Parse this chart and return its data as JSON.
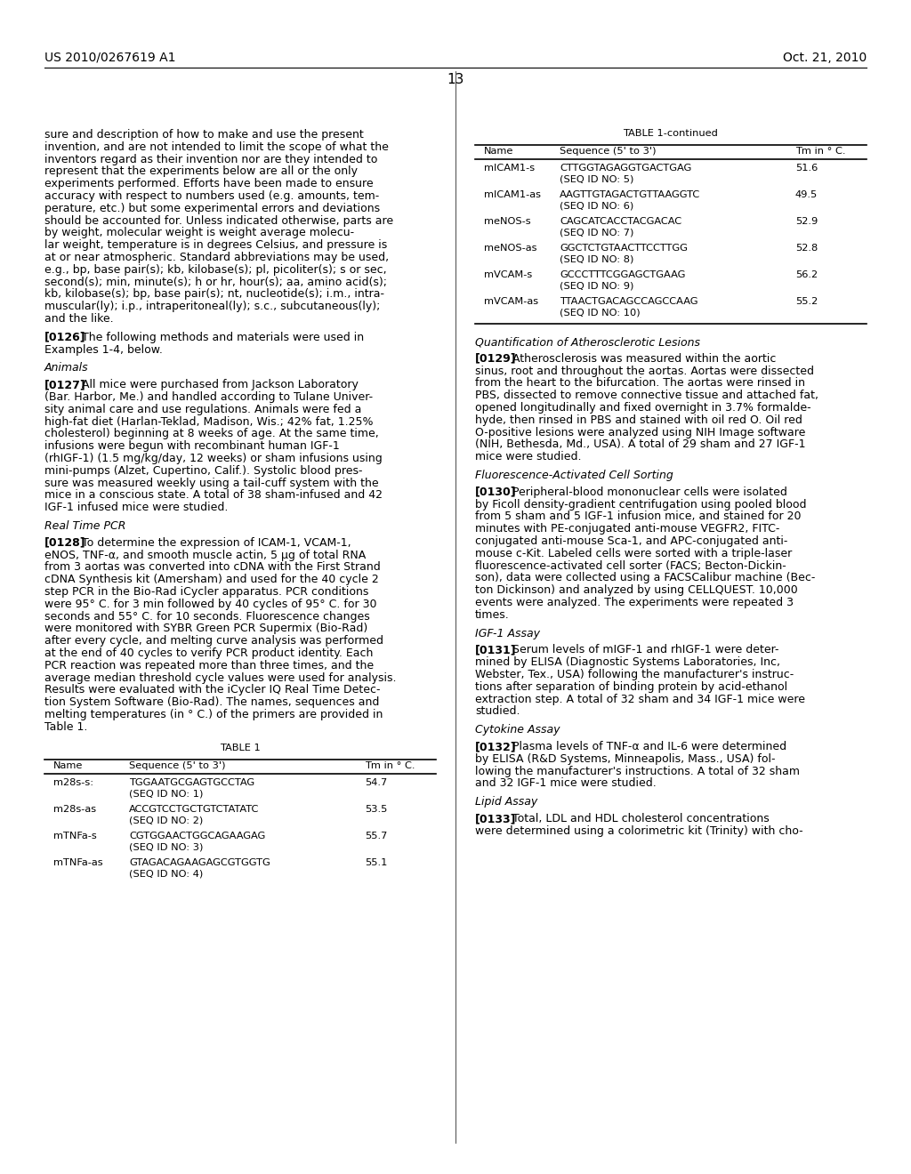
{
  "bg_color": "#ffffff",
  "header_left": "US 2010/0267619 A1",
  "header_right": "Oct. 21, 2010",
  "page_number": "13",
  "table1_title": "TABLE 1",
  "table1_cont_title": "TABLE 1-continued",
  "table1_headers": [
    "Name",
    "Sequence (5' to 3')",
    "Tm in ° C."
  ],
  "table1_rows": [
    [
      "m28s-s:",
      "TGGAATGCGAGTGCCTAG",
      "(SEQ ID NO: 1)",
      "54.7"
    ],
    [
      "m28s-as",
      "ACCGTCCTGCTGTCTATATC",
      "(SEQ ID NO: 2)",
      "53.5"
    ],
    [
      "mTNFa-s",
      "CGTGGAACTGGCAGAAGAG",
      "(SEQ ID NO: 3)",
      "55.7"
    ],
    [
      "mTNFa-as",
      "GTAGACAGAAGAGCGTGGTG",
      "(SEQ ID NO: 4)",
      "55.1"
    ]
  ],
  "table1_cont_rows": [
    [
      "mICAM1-s",
      "CTTGGTAGAGGTGACTGAG",
      "(SEQ ID NO: 5)",
      "51.6"
    ],
    [
      "mICAM1-as",
      "AAGTTGTAGACTGTTAAGGTC",
      "(SEQ ID NO: 6)",
      "49.5"
    ],
    [
      "meNOS-s",
      "CAGCATCACCTACGACAC",
      "(SEQ ID NO: 7)",
      "52.9"
    ],
    [
      "meNOS-as",
      "GGCTCTGTAACTTCCTTGG",
      "(SEQ ID NO: 8)",
      "52.8"
    ],
    [
      "mVCAM-s",
      "GCCCTTTCGGAGCTGAAG",
      "(SEQ ID NO: 9)",
      "56.2"
    ],
    [
      "mVCAM-as",
      "TTAACTGACAGCCAGCCAAG",
      "(SEQ ID NO: 10)",
      "55.2"
    ]
  ],
  "left_col": [
    {
      "type": "body",
      "lines": [
        "sure and description of how to make and use the present",
        "invention, and are not intended to limit the scope of what the",
        "inventors regard as their invention nor are they intended to",
        "represent that the experiments below are all or the only",
        "experiments performed. Efforts have been made to ensure",
        "accuracy with respect to numbers used (e.g. amounts, tem-",
        "perature, etc.) but some experimental errors and deviations",
        "should be accounted for. Unless indicated otherwise, parts are",
        "by weight, molecular weight is weight average molecu-",
        "lar weight, temperature is in degrees Celsius, and pressure is",
        "at or near atmospheric. Standard abbreviations may be used,",
        "e.g., bp, base pair(s); kb, kilobase(s); pl, picoliter(s); s or sec,",
        "second(s); min, minute(s); h or hr, hour(s); aa, amino acid(s);",
        "kb, kilobase(s); bp, base pair(s); nt, nucleotide(s); i.m., intra-",
        "muscular(ly); i.p., intraperitoneal(ly); s.c., subcutaneous(ly);",
        "and the like."
      ]
    },
    {
      "type": "tagged",
      "tag": "[0126]",
      "lines": [
        "The following methods and materials were used in",
        "Examples 1-4, below."
      ]
    },
    {
      "type": "section",
      "text": "Animals"
    },
    {
      "type": "tagged",
      "tag": "[0127]",
      "lines": [
        "All mice were purchased from Jackson Laboratory",
        "(Bar. Harbor, Me.) and handled according to Tulane Univer-",
        "sity animal care and use regulations. Animals were fed a",
        "high-fat diet (Harlan-Teklad, Madison, Wis.; 42% fat, 1.25%",
        "cholesterol) beginning at 8 weeks of age. At the same time,",
        "infusions were begun with recombinant human IGF-1",
        "(rhIGF-1) (1.5 mg/kg/day, 12 weeks) or sham infusions using",
        "mini-pumps (Alzet, Cupertino, Calif.). Systolic blood pres-",
        "sure was measured weekly using a tail-cuff system with the",
        "mice in a conscious state. A total of 38 sham-infused and 42",
        "IGF-1 infused mice were studied."
      ]
    },
    {
      "type": "section",
      "text": "Real Time PCR"
    },
    {
      "type": "tagged",
      "tag": "[0128]",
      "lines": [
        "To determine the expression of ICAM-1, VCAM-1,",
        "eNOS, TNF-α, and smooth muscle actin, 5 μg of total RNA",
        "from 3 aortas was converted into cDNA with the First Strand",
        "cDNA Synthesis kit (Amersham) and used for the 40 cycle 2",
        "step PCR in the Bio-Rad iCycler apparatus. PCR conditions",
        "were 95° C. for 3 min followed by 40 cycles of 95° C. for 30",
        "seconds and 55° C. for 10 seconds. Fluorescence changes",
        "were monitored with SYBR Green PCR Supermix (Bio-Rad)",
        "after every cycle, and melting curve analysis was performed",
        "at the end of 40 cycles to verify PCR product identity. Each",
        "PCR reaction was repeated more than three times, and the",
        "average median threshold cycle values were used for analysis.",
        "Results were evaluated with the iCycler IQ Real Time Detec-",
        "tion System Software (Bio-Rad). The names, sequences and",
        "melting temperatures (in ° C.) of the primers are provided in",
        "Table 1."
      ]
    }
  ],
  "right_col": [
    {
      "type": "section",
      "text": "Quantification of Atherosclerotic Lesions"
    },
    {
      "type": "tagged",
      "tag": "[0129]",
      "lines": [
        "Atherosclerosis was measured within the aortic",
        "sinus, root and throughout the aortas. Aortas were dissected",
        "from the heart to the bifurcation. The aortas were rinsed in",
        "PBS, dissected to remove connective tissue and attached fat,",
        "opened longitudinally and fixed overnight in 3.7% formalde-",
        "hyde, then rinsed in PBS and stained with oil red O. Oil red",
        "O-positive lesions were analyzed using NIH Image software",
        "(NIH, Bethesda, Md., USA). A total of 29 sham and 27 IGF-1",
        "mice were studied."
      ]
    },
    {
      "type": "section",
      "text": "Fluorescence-Activated Cell Sorting"
    },
    {
      "type": "tagged",
      "tag": "[0130]",
      "lines": [
        "Peripheral-blood mononuclear cells were isolated",
        "by Ficoll density-gradient centrifugation using pooled blood",
        "from 5 sham and 5 IGF-1 infusion mice, and stained for 20",
        "minutes with PE-conjugated anti-mouse VEGFR2, FITC-",
        "conjugated anti-mouse Sca-1, and APC-conjugated anti-",
        "mouse c-Kit. Labeled cells were sorted with a triple-laser",
        "fluorescence-activated cell sorter (FACS; Becton-Dickin-",
        "son), data were collected using a FACSCalibur machine (Bec-",
        "ton Dickinson) and analyzed by using CELLQUEST. 10,000",
        "events were analyzed. The experiments were repeated 3",
        "times."
      ]
    },
    {
      "type": "section",
      "text": "IGF-1 Assay"
    },
    {
      "type": "tagged",
      "tag": "[0131]",
      "lines": [
        "Serum levels of mIGF-1 and rhIGF-1 were deter-",
        "mined by ELISA (Diagnostic Systems Laboratories, Inc,",
        "Webster, Tex., USA) following the manufacturer's instruc-",
        "tions after separation of binding protein by acid-ethanol",
        "extraction step. A total of 32 sham and 34 IGF-1 mice were",
        "studied."
      ]
    },
    {
      "type": "section",
      "text": "Cytokine Assay"
    },
    {
      "type": "tagged",
      "tag": "[0132]",
      "lines": [
        "Plasma levels of TNF-α and IL-6 were determined",
        "by ELISA (R&D Systems, Minneapolis, Mass., USA) fol-",
        "lowing the manufacturer's instructions. A total of 32 sham",
        "and 32 IGF-1 mice were studied."
      ]
    },
    {
      "type": "section",
      "text": "Lipid Assay"
    },
    {
      "type": "tagged",
      "tag": "[0133]",
      "lines": [
        "Total, LDL and HDL cholesterol concentrations",
        "were determined using a colorimetric kit (Trinity) with cho-"
      ]
    }
  ]
}
